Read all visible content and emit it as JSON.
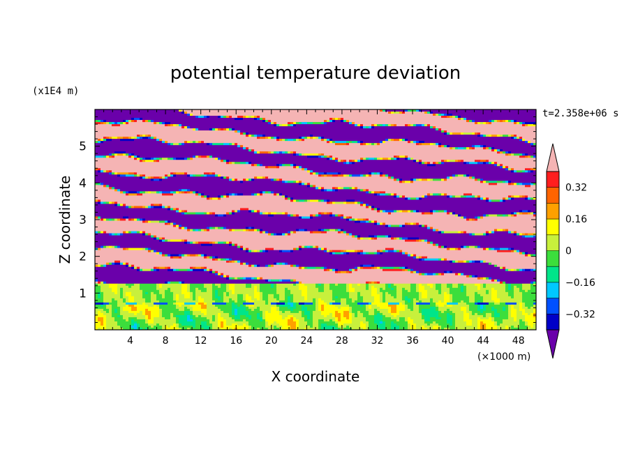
{
  "chart_data": {
    "type": "heatmap",
    "title": "potential temperature deviation",
    "xlabel": "X coordinate",
    "ylabel": "Z coordinate",
    "x_unit": "(×1000 m)",
    "y_unit": "(x1E4 m)",
    "time_label": "t=2.358e+06 s",
    "xlim": [
      0,
      50
    ],
    "ylim": [
      0,
      6
    ],
    "x_ticks": [
      "4",
      "8",
      "12",
      "16",
      "20",
      "24",
      "28",
      "32",
      "36",
      "40",
      "44",
      "48"
    ],
    "y_ticks": [
      "1",
      "2",
      "3",
      "4",
      "5"
    ],
    "colorbar": {
      "tick_labels": [
        "0.32",
        "0.16",
        "0",
        "−0.16",
        "−0.32"
      ],
      "levels": [
        -0.4,
        -0.32,
        -0.24,
        -0.16,
        -0.08,
        0,
        0.08,
        0.16,
        0.24,
        0.32,
        0.4
      ],
      "colors": [
        "#2d00a0",
        "#0000c8",
        "#0050ff",
        "#00c8ff",
        "#00e58a",
        "#3cde3c",
        "#c8f03c",
        "#ffff00",
        "#ffa000",
        "#ff6400",
        "#ff1e1e",
        "#f5b4b4"
      ],
      "under_color": "#6a00aa",
      "over_color": "#f5b4b4"
    }
  }
}
